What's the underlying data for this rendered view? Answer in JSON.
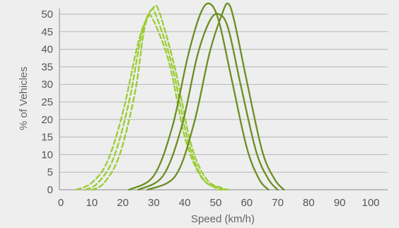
{
  "chart_data": {
    "type": "line",
    "xlabel": "Speed (km/h)",
    "ylabel": "% of Vehicles",
    "xlim": [
      0,
      100
    ],
    "ylim": [
      0,
      50
    ],
    "x_ticks": [
      0,
      10,
      20,
      30,
      40,
      50,
      60,
      70,
      80,
      90,
      100
    ],
    "y_ticks": [
      0,
      5,
      10,
      15,
      20,
      25,
      30,
      35,
      40,
      45,
      50
    ],
    "grid": "horizontal",
    "legend": "none",
    "colors": {
      "dashed": "#9acd32",
      "solid": "#6b8e23"
    },
    "series": [
      {
        "style": "dashed",
        "x": [
          5,
          10,
          15,
          20,
          25,
          28,
          30,
          35,
          40,
          45,
          50,
          52
        ],
        "y": [
          0,
          2,
          8,
          22,
          42,
          49,
          48,
          36,
          15,
          4,
          0.5,
          0
        ]
      },
      {
        "style": "dashed",
        "x": [
          8,
          12,
          17,
          22,
          26,
          29,
          31,
          36,
          41,
          46,
          51,
          53
        ],
        "y": [
          0,
          2,
          9,
          25,
          44,
          51,
          49,
          35,
          14,
          3,
          0.5,
          0
        ]
      },
      {
        "style": "dashed",
        "x": [
          10,
          14,
          19,
          24,
          27,
          30,
          32,
          37,
          42,
          47,
          52,
          54
        ],
        "y": [
          0,
          2,
          10,
          28,
          46,
          52,
          50,
          34,
          13,
          3,
          0.5,
          0
        ]
      },
      {
        "style": "solid",
        "x": [
          22,
          30,
          36,
          41,
          45,
          48,
          51,
          55,
          60,
          64,
          67
        ],
        "y": [
          0,
          4,
          18,
          38,
          50,
          53,
          48,
          32,
          12,
          3,
          0
        ]
      },
      {
        "style": "solid",
        "x": [
          25,
          33,
          39,
          44,
          48,
          51,
          54,
          58,
          63,
          67,
          70
        ],
        "y": [
          0,
          4,
          18,
          38,
          48,
          50,
          46,
          30,
          11,
          3,
          0
        ]
      },
      {
        "style": "solid",
        "x": [
          28,
          37,
          43,
          48,
          52,
          54,
          56,
          60,
          65,
          69,
          72
        ],
        "y": [
          0,
          4,
          19,
          39,
          50,
          53,
          48,
          31,
          11,
          3,
          0
        ]
      }
    ]
  }
}
